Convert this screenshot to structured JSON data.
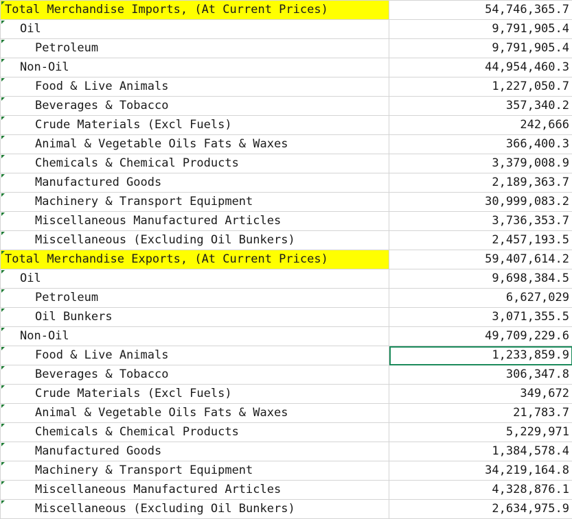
{
  "sheet": {
    "selected_row": 18,
    "highlight_color": "#ffff00",
    "rows": [
      {
        "label": "Total Merchandise Imports, (At Current Prices)",
        "value": "54,746,365.7",
        "level": 0,
        "highlight": true
      },
      {
        "label": "Oil",
        "value": "9,791,905.4",
        "level": 1,
        "highlight": false
      },
      {
        "label": "Petroleum",
        "value": "9,791,905.4",
        "level": 2,
        "highlight": false
      },
      {
        "label": "Non-Oil",
        "value": "44,954,460.3",
        "level": 1,
        "highlight": false
      },
      {
        "label": "Food & Live Animals",
        "value": "1,227,050.7",
        "level": 2,
        "highlight": false
      },
      {
        "label": "Beverages & Tobacco",
        "value": "357,340.2",
        "level": 2,
        "highlight": false
      },
      {
        "label": "Crude Materials (Excl Fuels)",
        "value": "242,666",
        "level": 2,
        "highlight": false
      },
      {
        "label": "Animal & Vegetable Oils Fats & Waxes",
        "value": "366,400.3",
        "level": 2,
        "highlight": false
      },
      {
        "label": "Chemicals & Chemical Products",
        "value": "3,379,008.9",
        "level": 2,
        "highlight": false
      },
      {
        "label": "Manufactured Goods",
        "value": "2,189,363.7",
        "level": 2,
        "highlight": false
      },
      {
        "label": "Machinery & Transport Equipment",
        "value": "30,999,083.2",
        "level": 2,
        "highlight": false
      },
      {
        "label": "Miscellaneous Manufactured Articles",
        "value": "3,736,353.7",
        "level": 2,
        "highlight": false
      },
      {
        "label": "Miscellaneous (Excluding Oil Bunkers)",
        "value": "2,457,193.5",
        "level": 2,
        "highlight": false
      },
      {
        "label": "Total Merchandise Exports, (At Current Prices)",
        "value": "59,407,614.2",
        "level": 0,
        "highlight": true
      },
      {
        "label": "Oil",
        "value": "9,698,384.5",
        "level": 1,
        "highlight": false
      },
      {
        "label": "Petroleum",
        "value": "6,627,029",
        "level": 2,
        "highlight": false
      },
      {
        "label": "Oil Bunkers",
        "value": "3,071,355.5",
        "level": 2,
        "highlight": false
      },
      {
        "label": "Non-Oil",
        "value": "49,709,229.6",
        "level": 1,
        "highlight": false
      },
      {
        "label": "Food & Live Animals",
        "value": "1,233,859.9",
        "level": 2,
        "highlight": false
      },
      {
        "label": "Beverages & Tobacco",
        "value": "306,347.8",
        "level": 2,
        "highlight": false
      },
      {
        "label": "Crude Materials (Excl Fuels)",
        "value": "349,672",
        "level": 2,
        "highlight": false
      },
      {
        "label": "Animal & Vegetable Oils Fats & Waxes",
        "value": "21,783.7",
        "level": 2,
        "highlight": false
      },
      {
        "label": "Chemicals & Chemical Products",
        "value": "5,229,971",
        "level": 2,
        "highlight": false
      },
      {
        "label": "Manufactured Goods",
        "value": "1,384,578.4",
        "level": 2,
        "highlight": false
      },
      {
        "label": "Machinery & Transport Equipment",
        "value": "34,219,164.8",
        "level": 2,
        "highlight": false
      },
      {
        "label": "Miscellaneous Manufactured Articles",
        "value": "4,328,876.1",
        "level": 2,
        "highlight": false
      },
      {
        "label": "Miscellaneous (Excluding Oil Bunkers)",
        "value": "2,634,975.9",
        "level": 2,
        "highlight": false
      }
    ]
  }
}
